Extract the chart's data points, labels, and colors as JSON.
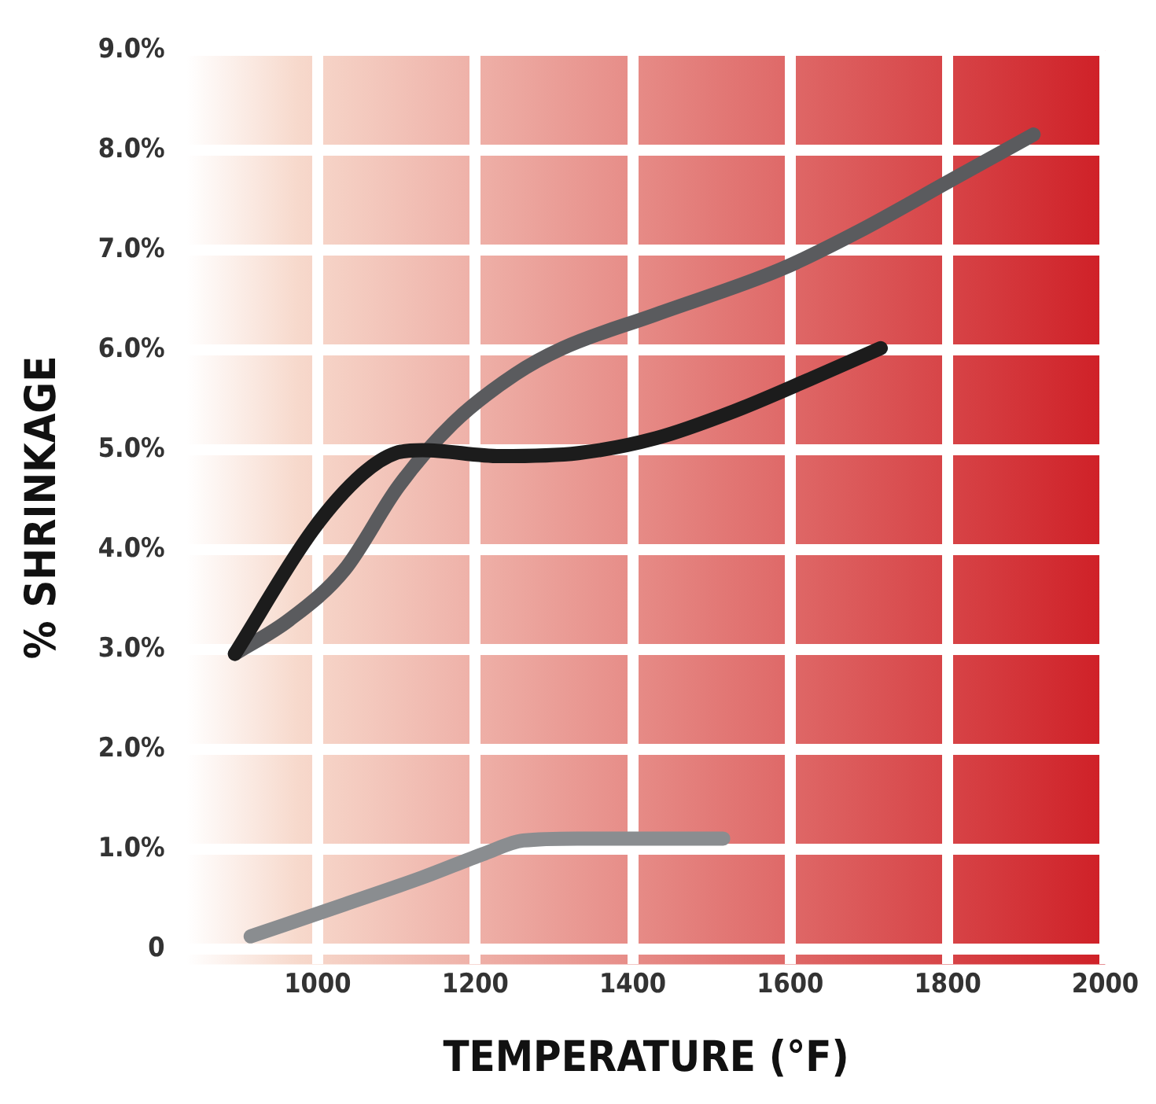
{
  "chart_data": {
    "type": "line",
    "xlabel": "TEMPERATURE (°F)",
    "ylabel": "% SHRINKAGE",
    "xlim": [
      834,
      2000
    ],
    "xticks": [
      1000,
      1200,
      1400,
      1600,
      1800,
      2000
    ],
    "ylim": [
      -0.15,
      9
    ],
    "yticks": [
      {
        "value": 0,
        "label": "0"
      },
      {
        "value": 1,
        "label": "1.0%"
      },
      {
        "value": 2,
        "label": "2.0%"
      },
      {
        "value": 3,
        "label": "3.0%"
      },
      {
        "value": 4,
        "label": "4.0%"
      },
      {
        "value": 5,
        "label": "5.0%"
      },
      {
        "value": 6,
        "label": "6.0%"
      },
      {
        "value": 7,
        "label": "7.0%"
      },
      {
        "value": 8,
        "label": "8.0%"
      },
      {
        "value": 9,
        "label": "9.0%"
      }
    ],
    "grid": true,
    "legend": false,
    "series": [
      {
        "color": "#1c1c1c",
        "x": [
          895,
          994,
          1057,
          1099,
          1133,
          1232,
          1331,
          1430,
          1529,
          1628,
          1715
        ],
        "values": [
          2.96,
          4.2,
          4.76,
          4.97,
          5.0,
          4.94,
          4.97,
          5.12,
          5.39,
          5.72,
          6.02
        ]
      },
      {
        "color": "#5a5b5e",
        "x": [
          895,
          964,
          1034,
          1103,
          1172,
          1251,
          1311,
          1430,
          1588,
          1687,
          1806,
          1909
        ],
        "values": [
          2.96,
          3.3,
          3.8,
          4.64,
          5.27,
          5.76,
          6.02,
          6.36,
          6.81,
          7.19,
          7.71,
          8.16
        ]
      },
      {
        "color": "#8a8d90",
        "x": [
          915,
          1034,
          1133,
          1212,
          1261,
          1330,
          1515
        ],
        "values": [
          0.13,
          0.45,
          0.72,
          0.96,
          1.09,
          1.11,
          1.11
        ]
      }
    ]
  }
}
